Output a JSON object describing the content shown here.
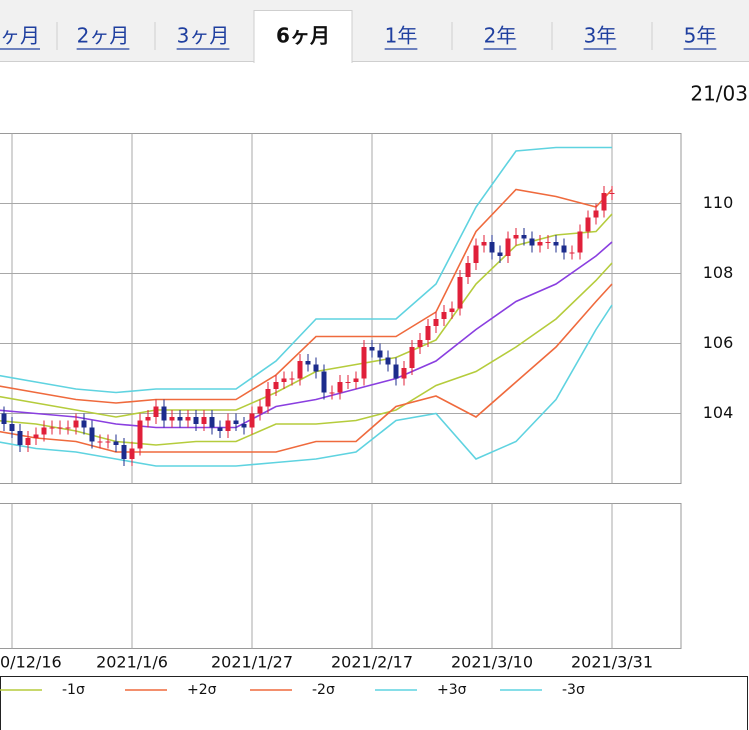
{
  "tabs": {
    "items": [
      "ヶ月",
      "2ヶ月",
      "3ヶ月",
      "6ヶ月",
      "1年",
      "2年",
      "3年",
      "5年"
    ],
    "selected": 3
  },
  "date_label": "21/03",
  "chart_data": {
    "type": "candlestick",
    "x": [
      "2020/12/14",
      "2020/12/15",
      "2020/12/16",
      "2020/12/17",
      "2020/12/18",
      "2020/12/21",
      "2020/12/22",
      "2020/12/23",
      "2020/12/24",
      "2020/12/25",
      "2020/12/28",
      "2020/12/29",
      "2020/12/30",
      "2020/12/31",
      "2021/1/1",
      "2021/1/4",
      "2021/1/5",
      "2021/1/6",
      "2021/1/7",
      "2021/1/8",
      "2021/1/11",
      "2021/1/12",
      "2021/1/13",
      "2021/1/14",
      "2021/1/15",
      "2021/1/18",
      "2021/1/19",
      "2021/1/20",
      "2021/1/21",
      "2021/1/22",
      "2021/1/25",
      "2021/1/26",
      "2021/1/27",
      "2021/1/28",
      "2021/1/29",
      "2021/2/1",
      "2021/2/2",
      "2021/2/3",
      "2021/2/4",
      "2021/2/5",
      "2021/2/8",
      "2021/2/9",
      "2021/2/10",
      "2021/2/11",
      "2021/2/12",
      "2021/2/15",
      "2021/2/16",
      "2021/2/17",
      "2021/2/18",
      "2021/2/19",
      "2021/2/22",
      "2021/2/23",
      "2021/2/24",
      "2021/2/25",
      "2021/2/26",
      "2021/3/1",
      "2021/3/2",
      "2021/3/3",
      "2021/3/4",
      "2021/3/5",
      "2021/3/8",
      "2021/3/9",
      "2021/3/10",
      "2021/3/11",
      "2021/3/12",
      "2021/3/15",
      "2021/3/16",
      "2021/3/17",
      "2021/3/18",
      "2021/3/19",
      "2021/3/22",
      "2021/3/23",
      "2021/3/24",
      "2021/3/25",
      "2021/3/26",
      "2021/3/29",
      "2021/3/30",
      "2021/3/31"
    ],
    "open": [
      104.1,
      104.0,
      103.7,
      103.5,
      103.1,
      103.3,
      103.4,
      103.6,
      103.6,
      103.6,
      103.6,
      103.8,
      103.6,
      103.2,
      103.2,
      103.2,
      103.1,
      102.7,
      103.0,
      103.8,
      103.9,
      104.2,
      103.8,
      103.9,
      103.8,
      103.9,
      103.7,
      103.9,
      103.6,
      103.5,
      103.8,
      103.7,
      103.6,
      104.0,
      104.2,
      104.7,
      104.9,
      105.0,
      105.0,
      105.5,
      105.4,
      105.2,
      104.6,
      104.6,
      104.9,
      104.9,
      105.0,
      105.9,
      105.8,
      105.6,
      105.4,
      105.0,
      105.3,
      105.9,
      106.1,
      106.5,
      106.7,
      106.9,
      107.0,
      107.9,
      108.3,
      108.8,
      108.9,
      108.6,
      108.5,
      109.0,
      109.1,
      109.0,
      108.8,
      108.9,
      108.9,
      108.8,
      108.6,
      108.6,
      109.2,
      109.6,
      109.8,
      110.3
    ],
    "high": [
      104.3,
      104.2,
      103.9,
      103.7,
      103.5,
      103.6,
      103.8,
      103.8,
      103.8,
      103.8,
      104.0,
      104.0,
      103.8,
      103.4,
      103.4,
      103.4,
      103.3,
      103.2,
      104.0,
      104.1,
      104.4,
      104.4,
      104.1,
      104.1,
      104.1,
      104.1,
      104.1,
      104.1,
      103.8,
      104.0,
      104.0,
      103.9,
      104.2,
      104.4,
      104.9,
      105.1,
      105.2,
      105.2,
      105.7,
      105.7,
      105.6,
      105.4,
      104.8,
      105.1,
      105.1,
      105.2,
      106.1,
      106.1,
      106.0,
      105.8,
      105.6,
      105.5,
      106.1,
      106.3,
      106.7,
      106.9,
      107.1,
      107.2,
      108.1,
      108.5,
      109.0,
      109.1,
      109.1,
      108.8,
      109.2,
      109.3,
      109.3,
      109.2,
      109.1,
      109.1,
      109.1,
      109.0,
      108.8,
      109.4,
      109.8,
      110.0,
      110.5,
      110.5
    ],
    "low": [
      103.8,
      103.5,
      103.3,
      102.9,
      102.9,
      103.1,
      103.2,
      103.4,
      103.4,
      103.4,
      103.4,
      103.4,
      103.0,
      103.0,
      103.0,
      102.9,
      102.5,
      102.5,
      102.8,
      103.6,
      103.7,
      103.6,
      103.6,
      103.6,
      103.6,
      103.5,
      103.5,
      103.4,
      103.3,
      103.3,
      103.5,
      103.4,
      103.4,
      103.8,
      104.0,
      104.5,
      104.7,
      104.8,
      104.8,
      105.2,
      105.0,
      104.4,
      104.4,
      104.4,
      104.7,
      104.7,
      104.8,
      105.6,
      105.4,
      105.2,
      104.8,
      104.8,
      105.1,
      105.7,
      105.9,
      106.3,
      106.5,
      106.7,
      106.8,
      107.7,
      108.1,
      108.6,
      108.4,
      108.3,
      108.3,
      108.8,
      108.8,
      108.6,
      108.6,
      108.7,
      108.6,
      108.4,
      108.4,
      108.4,
      109.0,
      109.4,
      109.6,
      110.1
    ],
    "close": [
      104.0,
      103.7,
      103.5,
      103.1,
      103.3,
      103.4,
      103.6,
      103.6,
      103.6,
      103.6,
      103.8,
      103.6,
      103.2,
      103.2,
      103.2,
      103.1,
      102.7,
      103.0,
      103.8,
      103.9,
      104.2,
      103.8,
      103.9,
      103.8,
      103.9,
      103.7,
      103.9,
      103.6,
      103.5,
      103.8,
      103.7,
      103.6,
      104.0,
      104.2,
      104.7,
      104.9,
      105.0,
      105.0,
      105.5,
      105.4,
      105.2,
      104.6,
      104.6,
      104.9,
      104.9,
      105.0,
      105.9,
      105.8,
      105.6,
      105.4,
      105.0,
      105.3,
      105.9,
      106.1,
      106.5,
      106.7,
      106.9,
      107.0,
      107.9,
      108.3,
      108.8,
      108.9,
      108.6,
      108.5,
      109.0,
      109.1,
      109.0,
      108.8,
      108.9,
      108.9,
      108.8,
      108.6,
      108.6,
      109.2,
      109.6,
      109.8,
      110.3,
      110.3
    ],
    "up_color": "#e0203a",
    "down_color": "#1c2c8c",
    "lines": {
      "x": [
        "2020/12/14",
        "2020/12/21",
        "2020/12/28",
        "2021/1/4",
        "2021/1/11",
        "2021/1/18",
        "2021/1/25",
        "2021/2/1",
        "2021/2/8",
        "2021/2/15",
        "2021/2/22",
        "2021/3/1",
        "2021/3/8",
        "2021/3/15",
        "2021/3/22",
        "2021/3/29",
        "2021/3/31"
      ],
      "series": [
        {
          "color": "#8a3fe0",
          "values": [
            104.1,
            104.0,
            103.9,
            103.7,
            103.6,
            103.6,
            103.6,
            104.2,
            104.4,
            104.7,
            105.0,
            105.5,
            106.4,
            107.2,
            107.7,
            108.5,
            108.9
          ]
        },
        {
          "color": "#b5cc3c",
          "values": [
            104.5,
            104.3,
            104.1,
            103.9,
            104.1,
            104.1,
            104.1,
            104.6,
            105.2,
            105.4,
            105.6,
            106.1,
            107.7,
            108.8,
            109.1,
            109.2,
            109.7
          ]
        },
        {
          "name": "-1σ",
          "color": "#b5cc3c",
          "values": [
            103.8,
            103.7,
            103.5,
            103.2,
            103.1,
            103.2,
            103.2,
            103.7,
            103.7,
            103.8,
            104.1,
            104.8,
            105.2,
            105.9,
            106.7,
            107.8,
            108.3
          ]
        },
        {
          "name": "+2σ",
          "color": "#ef6a3d",
          "values": [
            104.8,
            104.6,
            104.4,
            104.3,
            104.4,
            104.4,
            104.4,
            105.1,
            106.2,
            106.2,
            106.2,
            106.9,
            109.2,
            110.4,
            110.2,
            109.9,
            110.4
          ]
        },
        {
          "name": "-2σ",
          "color": "#ef6a3d",
          "values": [
            103.5,
            103.3,
            103.2,
            102.9,
            102.9,
            102.9,
            102.9,
            102.9,
            103.2,
            103.2,
            104.2,
            104.5,
            103.9,
            104.9,
            105.9,
            107.2,
            107.7
          ]
        },
        {
          "name": "+3σ",
          "color": "#5fd3e0",
          "values": [
            105.1,
            104.9,
            104.7,
            104.6,
            104.7,
            104.7,
            104.7,
            105.5,
            106.7,
            106.7,
            106.7,
            107.7,
            109.9,
            111.5,
            111.6,
            111.6,
            111.6
          ]
        },
        {
          "name": "-3σ",
          "color": "#5fd3e0",
          "values": [
            103.2,
            103.0,
            102.9,
            102.7,
            102.5,
            102.5,
            102.5,
            102.6,
            102.7,
            102.9,
            103.8,
            104.0,
            102.7,
            103.2,
            104.4,
            106.4,
            107.1
          ]
        }
      ]
    },
    "xlim": [
      "2020/12/14",
      "2021/4/9"
    ],
    "xticks": [
      {
        "value": "2020/12/16",
        "label": "0/12/16"
      },
      "2021/1/6",
      "2021/1/27",
      "2021/2/17",
      "2021/3/10",
      "2021/3/31"
    ],
    "ylim": [
      102,
      112
    ],
    "yticks": [
      104,
      106,
      108,
      110
    ],
    "grid": true
  }
}
